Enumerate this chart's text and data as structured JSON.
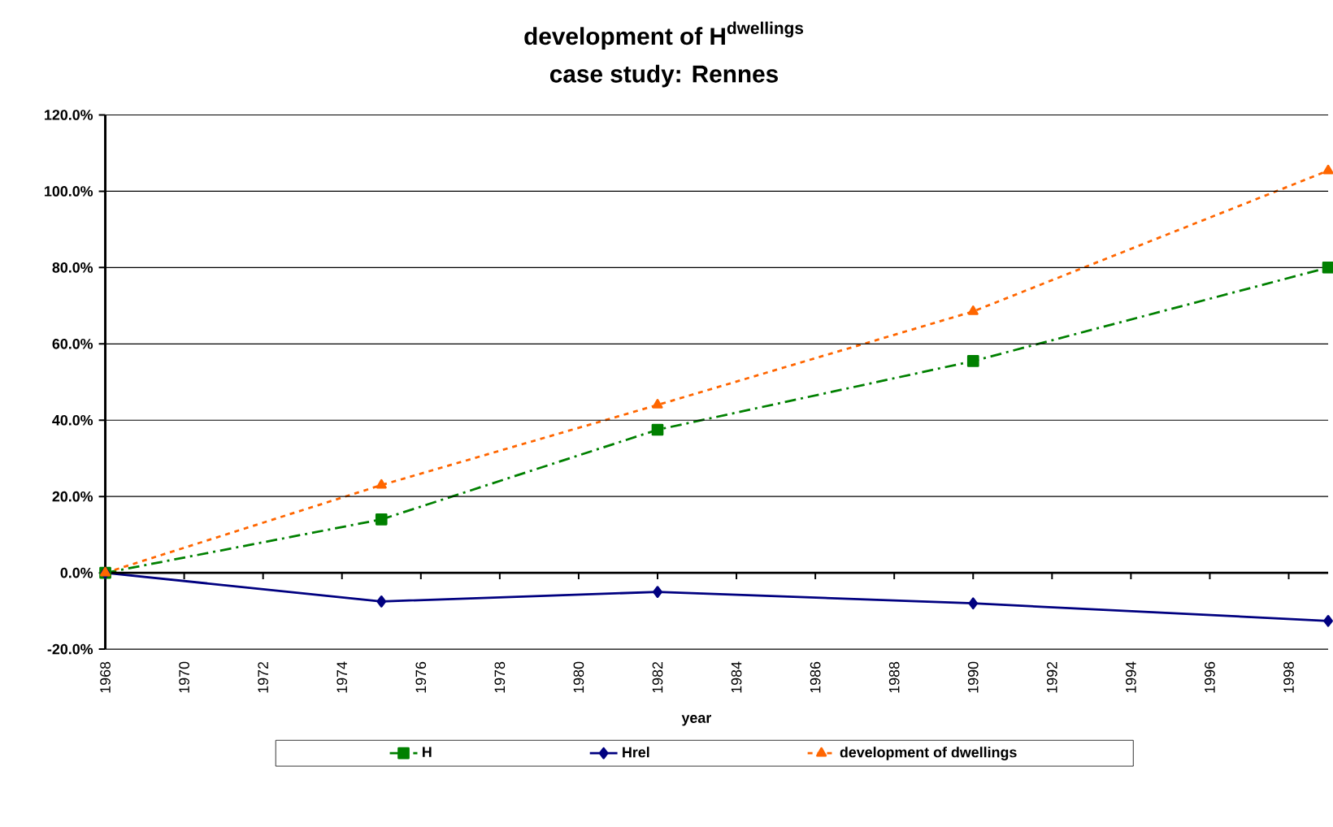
{
  "chart_data": {
    "type": "line",
    "title": "\\text{development of H}^{\\text{dwellings}}",
    "subtitle": "case study: Rennes",
    "xlabel": "year",
    "xlim": [
      1968,
      1999
    ],
    "xticks": [
      1968,
      1970,
      1972,
      1974,
      1976,
      1978,
      1980,
      1982,
      1984,
      1986,
      1988,
      1990,
      1992,
      1994,
      1996,
      1998
    ],
    "ylim": [
      -20,
      120
    ],
    "yticks": [
      {
        "value": -20,
        "label": "-20.0%"
      },
      {
        "value": 0,
        "label": "0.0%"
      },
      {
        "value": 20,
        "label": "20.0%"
      },
      {
        "value": 40,
        "label": "40.0%"
      },
      {
        "value": 60,
        "label": "60.0%"
      },
      {
        "value": 80,
        "label": "80.0%"
      },
      {
        "value": 100,
        "label": "100.0%"
      },
      {
        "value": 120,
        "label": "120.0%"
      }
    ],
    "grid": "y",
    "legend": "bottom",
    "series": [
      {
        "name": "H",
        "color": "#008000",
        "marker": "square",
        "line_style": "dashdot",
        "x": [
          1968,
          1975,
          1982,
          1990,
          1999
        ],
        "values": [
          0,
          14,
          37.5,
          55.5,
          80
        ]
      },
      {
        "name": "Hrel",
        "color": "#000080",
        "marker": "diamond",
        "line_style": "solid",
        "x": [
          1968,
          1975,
          1982,
          1990,
          1999
        ],
        "values": [
          0,
          -7.5,
          -5,
          -8,
          -12.6
        ]
      },
      {
        "name": "development of dwellings",
        "color": "#ff6600",
        "marker": "triangle",
        "line_style": "dashed",
        "x": [
          1968,
          1975,
          1982,
          1990,
          1999
        ],
        "values": [
          0,
          23,
          44,
          68.5,
          105.4
        ]
      }
    ]
  }
}
